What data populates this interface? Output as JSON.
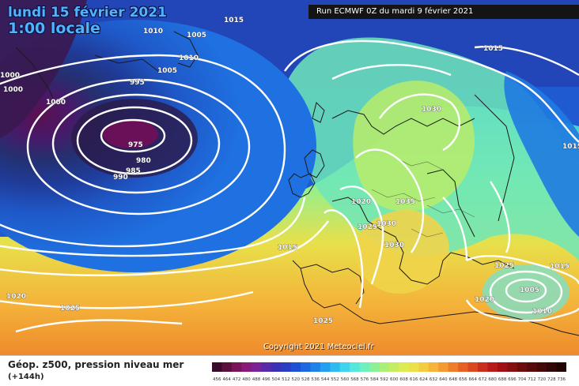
{
  "title": {
    "date": "lundi 15 février 2021",
    "local_time": "1:00 locale"
  },
  "run_info": "Run ECMWF 0Z du mardi 9 février 2021",
  "copyright": "Copyright 2021 Meteociel.fr",
  "parameter": "Géop. z500, pression niveau mer",
  "lead_time": "(+144h)",
  "legend": {
    "values": [
      "456",
      "464",
      "472",
      "480",
      "488",
      "496",
      "504",
      "512",
      "520",
      "528",
      "536",
      "544",
      "552",
      "560",
      "568",
      "576",
      "584",
      "592",
      "600",
      "608",
      "616",
      "624",
      "632",
      "640",
      "648",
      "656",
      "664",
      "672",
      "680",
      "688",
      "696",
      "704",
      "712",
      "720",
      "728",
      "736"
    ],
    "colors": [
      "#3a0a2a",
      "#5a0f3c",
      "#7a145a",
      "#8a1a78",
      "#7a2296",
      "#5c2aa8",
      "#3a32b4",
      "#2a3ec4",
      "#2050d4",
      "#1f68e0",
      "#1f82e8",
      "#25a0ee",
      "#2ebcf0",
      "#3fd4ee",
      "#55e6dc",
      "#6ef0bc",
      "#8cf096",
      "#aaf078",
      "#c4ee62",
      "#dcec52",
      "#ece04a",
      "#f4cc42",
      "#f6b43a",
      "#f49a32",
      "#ee7e2a",
      "#e66224",
      "#da4820",
      "#cc2e1c",
      "#b81a18",
      "#a01014",
      "#861010",
      "#6e0c0c",
      "#580a0a",
      "#440808",
      "#300606",
      "#200404"
    ]
  },
  "isobars": [
    "1010",
    "1005",
    "1015",
    "1010",
    "1005",
    "1000",
    "1000",
    "995",
    "975",
    "980",
    "985",
    "990",
    "1000",
    "1015",
    "1030",
    "1020",
    "1035",
    "1025",
    "1030",
    "1030",
    "1015",
    "1020",
    "1025",
    "1025",
    "1005",
    "1015",
    "1020",
    "1010",
    "1025",
    "1015",
    "1020"
  ]
}
